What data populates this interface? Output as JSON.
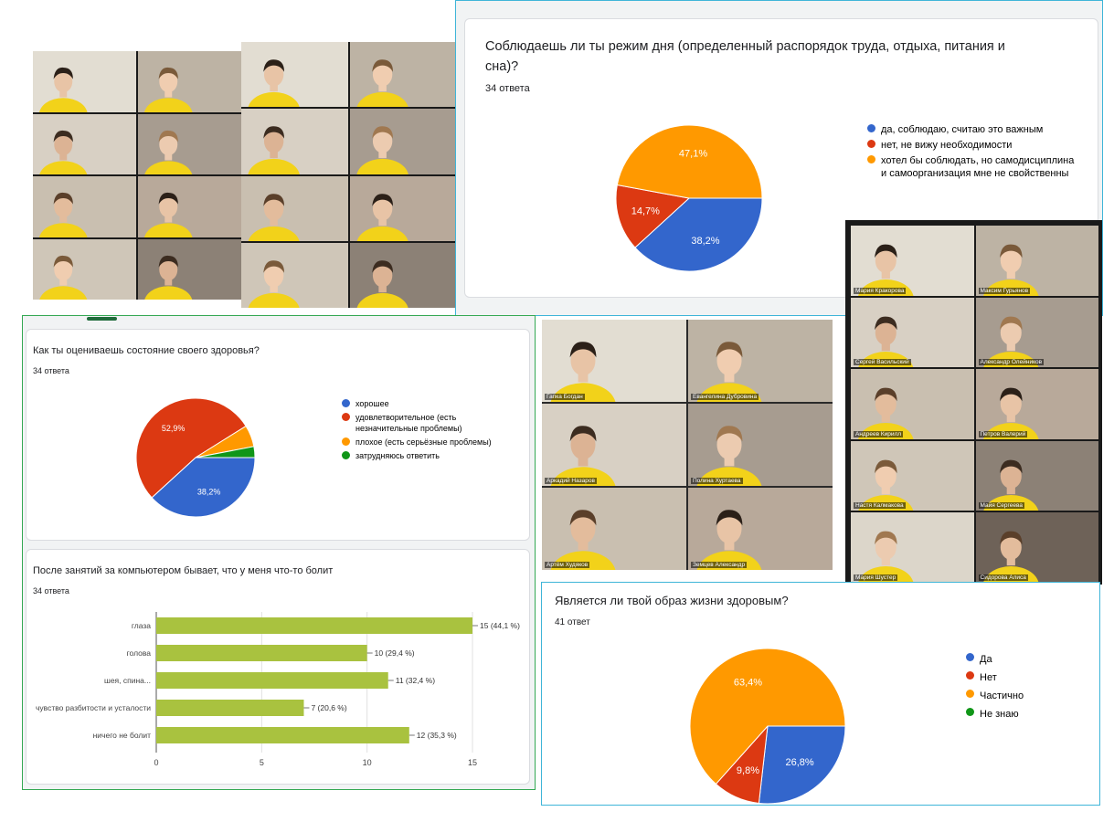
{
  "colors": {
    "blue": "#3366cc",
    "red": "#dc3912",
    "orange": "#ff9900",
    "green": "#109618",
    "bar": "#a9c23f"
  },
  "grid_a": {
    "cells": 8
  },
  "grid_b": {
    "cells": 8
  },
  "grid_c": {
    "names": [
      "Гапка Богдан",
      "Евангелина Дубровина",
      "Аркадий Назаров",
      "Полина Хуртаева",
      "Артём Худяков",
      "Земцев Александр"
    ]
  },
  "grid_d": {
    "names": [
      "Мария Кракорова",
      "Максим Гурьянов",
      "Сергей Васильский",
      "Александр Олейников",
      "Андреев Кирилл",
      "Петров Валерий",
      "Настя Калмакова",
      "Майя Сергеева",
      "Мария Шустер",
      "Сидорова Алиса"
    ]
  },
  "chart_data": [
    {
      "type": "pie",
      "title": "Соблюдаешь ли ты режим дня (определенный распорядок труда, отдыха, питания и сна)?",
      "subtitle": "34 ответа",
      "categories": [
        "да, соблюдаю, считаю это важным",
        "нет, не вижу необходимости",
        "хотел бы соблюдать, но самодисциплина и самоорганизация мне не свойственны"
      ],
      "values": [
        38.2,
        14.7,
        47.1
      ],
      "labels": [
        "38,2%",
        "14,7%",
        "47,1%"
      ],
      "colors": [
        "#3366cc",
        "#dc3912",
        "#ff9900"
      ],
      "legend": "right"
    },
    {
      "type": "pie",
      "title": "Как ты оцениваешь состояние своего здоровья?",
      "subtitle": "34 ответа",
      "categories": [
        "хорошее",
        "удовлетворительное (есть незначительные проблемы)",
        "плохое (есть серьёзные проблемы)",
        "затрудняюсь ответить"
      ],
      "values": [
        38.2,
        52.9,
        5.9,
        3.0
      ],
      "labels": [
        "38,2%",
        "52,9%",
        "",
        ""
      ],
      "colors": [
        "#3366cc",
        "#dc3912",
        "#ff9900",
        "#109618"
      ],
      "legend": "right"
    },
    {
      "type": "bar",
      "orientation": "horizontal",
      "title": "После занятий за компьютером бывает, что у меня что-то болит",
      "subtitle": "34 ответа",
      "categories": [
        "глаза",
        "голова",
        "шея, спина...",
        "чувство разбитости и усталости",
        "ничего не болит"
      ],
      "values": [
        15,
        10,
        11,
        7,
        12
      ],
      "labels": [
        "15 (44,1 %)",
        "10 (29,4 %)",
        "11 (32,4 %)",
        "7 (20,6 %)",
        "12 (35,3 %)"
      ],
      "xlim": [
        0,
        15
      ],
      "xticks": [
        "0",
        "5",
        "10",
        "15"
      ],
      "grid": true
    },
    {
      "type": "pie",
      "title": "Является ли твой образ жизни здоровым?",
      "subtitle": "41 ответ",
      "categories": [
        "Да",
        "Нет",
        "Частично",
        "Не знаю"
      ],
      "values": [
        26.8,
        9.8,
        63.4,
        0
      ],
      "labels": [
        "26,8%",
        "9,8%",
        "63,4%",
        ""
      ],
      "colors": [
        "#3366cc",
        "#dc3912",
        "#ff9900",
        "#109618"
      ],
      "legend": "right"
    }
  ]
}
